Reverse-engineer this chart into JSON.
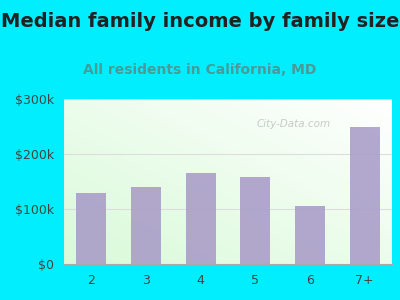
{
  "title": "Median family income by family size",
  "subtitle": "All residents in California, MD",
  "categories": [
    "2",
    "3",
    "4",
    "5",
    "6",
    "7+"
  ],
  "values": [
    130000,
    140000,
    165000,
    158000,
    105000,
    250000
  ],
  "bar_color": "#a99cc8",
  "title_color": "#222222",
  "subtitle_color": "#4a9a9a",
  "background_color": "#00eeff",
  "ylim": [
    0,
    300000
  ],
  "yticks": [
    0,
    100000,
    200000,
    300000
  ],
  "ytick_labels": [
    "$0",
    "$100k",
    "$200k",
    "$300k"
  ],
  "watermark": "City-Data.com",
  "title_fontsize": 14,
  "subtitle_fontsize": 10,
  "tick_fontsize": 9,
  "grid_color": "#dddddd"
}
